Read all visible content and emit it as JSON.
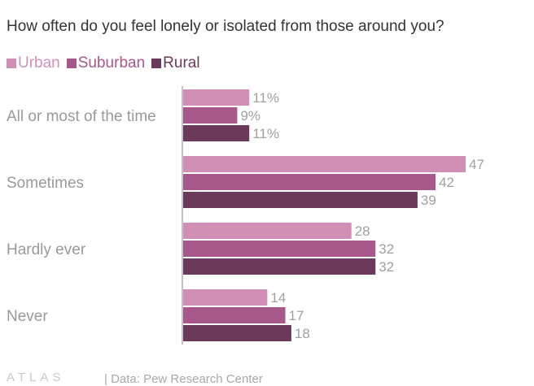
{
  "chart_data": {
    "type": "bar",
    "orientation": "horizontal",
    "title": "How often do you feel lonely or isolated from those around you?",
    "categories": [
      "All or most of the time",
      "Sometimes",
      "Hardly ever",
      "Never"
    ],
    "series": [
      {
        "name": "Urban",
        "color": "#d18fb6",
        "values": [
          11,
          47,
          28,
          14
        ],
        "labels": [
          "11%",
          "47",
          "28",
          "14"
        ]
      },
      {
        "name": "Suburban",
        "color": "#a8578b",
        "values": [
          9,
          42,
          32,
          17
        ],
        "labels": [
          "9%",
          "42",
          "32",
          "17"
        ]
      },
      {
        "name": "Rural",
        "color": "#6b3a5a",
        "values": [
          11,
          39,
          32,
          18
        ],
        "labels": [
          "11%",
          "39",
          "32",
          "18"
        ]
      }
    ],
    "xlim": [
      0,
      47
    ],
    "grid": false,
    "legend_position": "top-left"
  },
  "footer": {
    "brand": "ATLAS",
    "source": "| Data: Pew Research Center"
  }
}
